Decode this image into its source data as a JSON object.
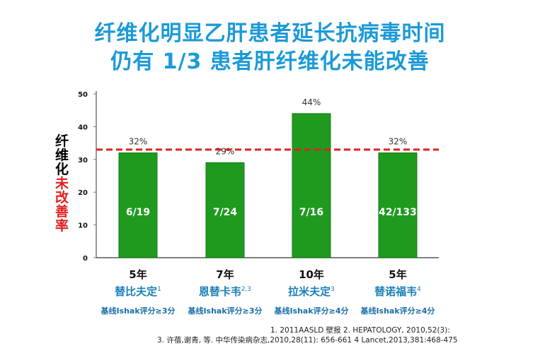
{
  "title": {
    "line1": "纤维化明显乙肝患者延长抗病毒时间",
    "line2": "仍有 1/3 患者肝纤维化未能改善"
  },
  "chart_data": {
    "type": "bar",
    "ylabel_black": "纤维化",
    "ylabel_red": "未改善率",
    "ylim": [
      0,
      50
    ],
    "yticks": [
      0,
      10,
      20,
      30,
      40,
      50
    ],
    "categories": [
      {
        "years": "5年",
        "drug": "替比夫定",
        "sup": "1",
        "baseline": "基线Ishak评分≥3分"
      },
      {
        "years": "7年",
        "drug": "恩替卡韦",
        "sup": "2,3",
        "baseline": "基线Ishak评分≥3分"
      },
      {
        "years": "10年",
        "drug": "拉米夫定",
        "sup": "3",
        "baseline": "基线Ishak评分≥4分"
      },
      {
        "years": "5年",
        "drug": "替诺福韦",
        "sup": "4",
        "baseline": "基线Ishak评分≥4分"
      }
    ],
    "values": [
      32,
      29,
      44,
      32
    ],
    "data_labels": [
      "32%",
      "29%",
      "44%",
      "32%"
    ],
    "bar_labels": [
      "6/19",
      "7/24",
      "7/16",
      "42/133"
    ],
    "reference_line": 33,
    "colors": {
      "bar": "#1f9a1f",
      "reference": "#e02020"
    }
  },
  "references": {
    "line1": "1.  2011AASLD  壁报     2.  HEPATOLOGY, 2010,52(3):",
    "line2": "3.  许蓓,谢青, 等. 中华传染病杂志,2010,28(11): 656-661    4 Lancet,2013,381:468-475"
  }
}
